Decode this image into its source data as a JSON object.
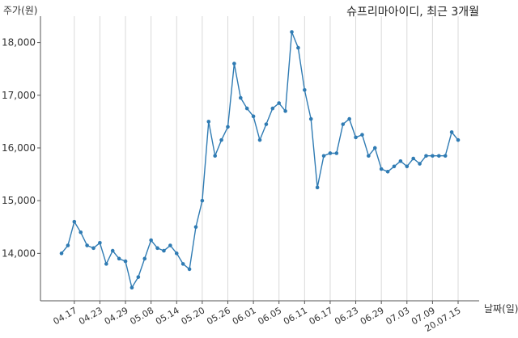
{
  "chart_data": {
    "type": "line",
    "title": "슈프리마아이디, 최근 3개월",
    "xlabel": "날짜(일)",
    "ylabel": "주가(원)",
    "ylim": [
      13100,
      18500
    ],
    "yticks": [
      14000,
      15000,
      16000,
      17000,
      18000
    ],
    "ytick_labels": [
      "14,000",
      "15,000",
      "16,000",
      "17,000",
      "18,000"
    ],
    "xtick_labels": [
      "04.17",
      "04.23",
      "04.29",
      "05.08",
      "05.14",
      "05.20",
      "05.26",
      "06.01",
      "06.05",
      "06.11",
      "06.17",
      "06.23",
      "06.29",
      "07.03",
      "07.09",
      "20.07.15"
    ],
    "xtick_indices": [
      2,
      6,
      10,
      14,
      18,
      22,
      26,
      30,
      34,
      38,
      42,
      46,
      50,
      54,
      58,
      62
    ],
    "grid": "vertical",
    "color": "#2f7bb3",
    "series": [
      {
        "values": [
          14000,
          14150,
          14600,
          14400,
          14150,
          14100,
          14200,
          13800,
          14050,
          13900,
          13850,
          13350,
          13550,
          13900,
          14250,
          14100,
          14050,
          14150,
          14000,
          13800,
          13700,
          14500,
          15000,
          16500,
          15850,
          16150,
          16400,
          17600,
          16950,
          16750,
          16600,
          16150,
          16450,
          16750,
          16850,
          16700,
          18200,
          17900,
          17100,
          16550,
          15250,
          15850,
          15900,
          15900,
          16450,
          16550,
          16200,
          16250,
          15850,
          16000,
          15600,
          15550,
          15650,
          15750,
          15650,
          15800,
          15700,
          15850,
          15850,
          15850,
          15850,
          16300,
          16150
        ]
      }
    ]
  }
}
